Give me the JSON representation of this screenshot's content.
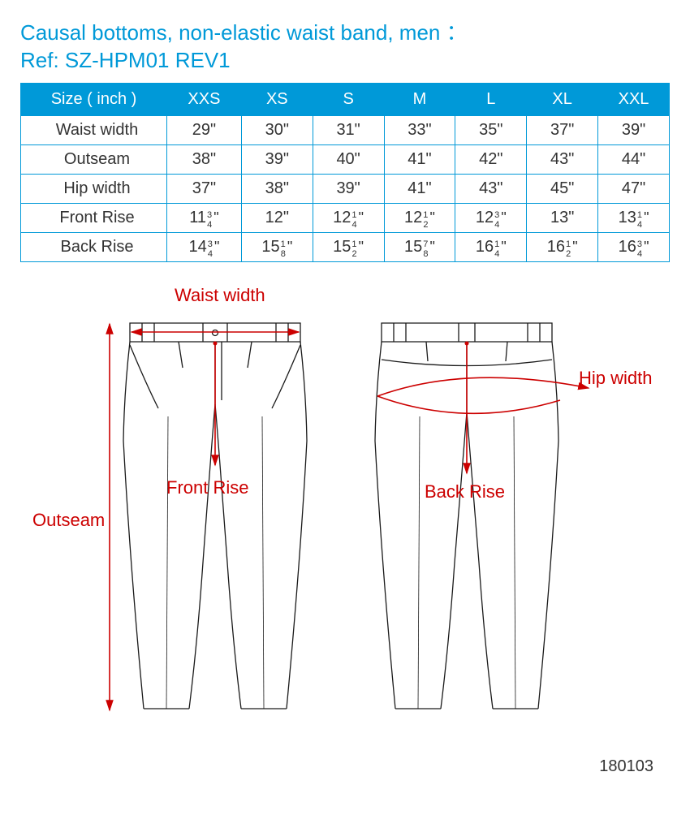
{
  "title_line1": "Causal bottoms, non-elastic waist band, men ：",
  "title_line2": "Ref: SZ-HPM01  REV1",
  "colors": {
    "accent": "#0099d8",
    "text": "#333333",
    "label": "#cc0000",
    "outline": "#1a1a1a",
    "background": "#ffffff"
  },
  "table": {
    "header_label": "Size ( inch )",
    "sizes": [
      "XXS",
      "XS",
      "S",
      "M",
      "L",
      "XL",
      "XXL"
    ],
    "rows": [
      {
        "label": "Waist width",
        "values": [
          "29\"",
          "30\"",
          "31\"",
          "33\"",
          "35\"",
          "37\"",
          "39\""
        ]
      },
      {
        "label": "Outseam",
        "values": [
          "38\"",
          "39\"",
          "40\"",
          "41\"",
          "42\"",
          "43\"",
          "44\""
        ]
      },
      {
        "label": "Hip width",
        "values": [
          "37\"",
          "38\"",
          "39\"",
          "41\"",
          "43\"",
          "45\"",
          "47\""
        ]
      },
      {
        "label": "Front Rise",
        "values": [
          "11 3/4\"",
          "12\"",
          "12 1/4\"",
          "12 1/2\"",
          "12 3/4\"",
          "13\"",
          "13 1/4\""
        ]
      },
      {
        "label": "Back Rise",
        "values": [
          "14 3/4\"",
          "15 1/8\"",
          "15 1/2\"",
          "15 7/8\"",
          "16 1/4\"",
          "16 1/2\"",
          "16 3/4\""
        ]
      }
    ],
    "font_size": 20,
    "border_color": "#0099d8",
    "header_bg": "#0099d8",
    "header_text": "#ffffff"
  },
  "diagram": {
    "labels": {
      "waist_width": "Waist width",
      "outseam": "Outseam",
      "front_rise": "Front Rise",
      "back_rise": "Back Rise",
      "hip_width": "Hip width"
    }
  },
  "footer": "180103"
}
